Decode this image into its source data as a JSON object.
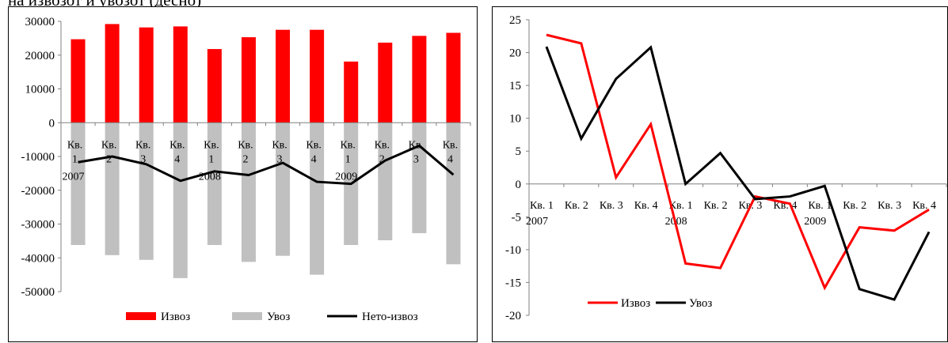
{
  "caption": "на извозот и увозот (десно)",
  "chart_data": [
    {
      "type": "bar",
      "categories": [
        [
          "Кв.",
          "1",
          "2007"
        ],
        [
          "Кв.",
          "2",
          ""
        ],
        [
          "Кв.",
          "3",
          ""
        ],
        [
          "Кв.",
          "4",
          ""
        ],
        [
          "Кв.",
          "1",
          "2008"
        ],
        [
          "Кв.",
          "2",
          ""
        ],
        [
          "Кв.",
          "3",
          ""
        ],
        [
          "Кв.",
          "4",
          ""
        ],
        [
          "Кв.",
          "1",
          "2009"
        ],
        [
          "Кв.",
          "2",
          ""
        ],
        [
          "Кв.",
          "3",
          ""
        ],
        [
          "Кв.",
          "4",
          ""
        ]
      ],
      "series": [
        {
          "name": "Извоз",
          "kind": "bar",
          "color": "#ff0000",
          "values": [
            24700,
            29200,
            28200,
            28500,
            21800,
            25300,
            27500,
            27500,
            18100,
            23700,
            25700,
            26600
          ]
        },
        {
          "name": "Увоз",
          "kind": "bar",
          "color": "#c0c0c0",
          "values": [
            -36200,
            -39200,
            -40600,
            -46000,
            -36200,
            -41200,
            -39400,
            -45000,
            -36200,
            -34800,
            -32700,
            -41900
          ]
        },
        {
          "name": "Нето-извоз",
          "kind": "line",
          "color": "#000000",
          "values": [
            -11700,
            -10000,
            -12300,
            -17200,
            -14400,
            -15500,
            -11900,
            -17500,
            -18100,
            -11200,
            -6800,
            -15400
          ]
        }
      ],
      "ylim": [
        -50000,
        30000
      ],
      "yticks": [
        30000,
        20000,
        10000,
        0,
        -10000,
        -20000,
        -30000,
        -40000,
        -50000
      ],
      "grid": false,
      "legend": "bottom"
    },
    {
      "type": "line",
      "categories": [
        [
          "Кв. 1",
          "2007"
        ],
        [
          "Кв. 2",
          ""
        ],
        [
          "Кв. 3",
          ""
        ],
        [
          "Кв. 4",
          ""
        ],
        [
          "Кв. 1",
          "2008"
        ],
        [
          "Кв. 2",
          ""
        ],
        [
          "Кв. 3",
          ""
        ],
        [
          "Кв. 4",
          ""
        ],
        [
          "Кв. 1",
          "2009"
        ],
        [
          "Кв. 2",
          ""
        ],
        [
          "Кв. 3",
          ""
        ],
        [
          "Кв. 4",
          ""
        ]
      ],
      "series": [
        {
          "name": "Извоз",
          "color": "#ff0000",
          "values": [
            22.7,
            21.4,
            1.0,
            9.1,
            -12.1,
            -12.8,
            -1.9,
            -3.0,
            -15.8,
            -6.6,
            -7.1,
            -3.9
          ]
        },
        {
          "name": "Увоз",
          "color": "#000000",
          "values": [
            20.9,
            6.9,
            16.0,
            20.8,
            0.0,
            4.7,
            -2.3,
            -1.9,
            -0.3,
            -16.0,
            -17.6,
            -7.3
          ]
        }
      ],
      "ylim": [
        -20,
        25
      ],
      "yticks": [
        25,
        20,
        15,
        10,
        5,
        0,
        -5,
        -10,
        -15,
        -20
      ],
      "grid": false,
      "legend": "bottom-left"
    }
  ]
}
